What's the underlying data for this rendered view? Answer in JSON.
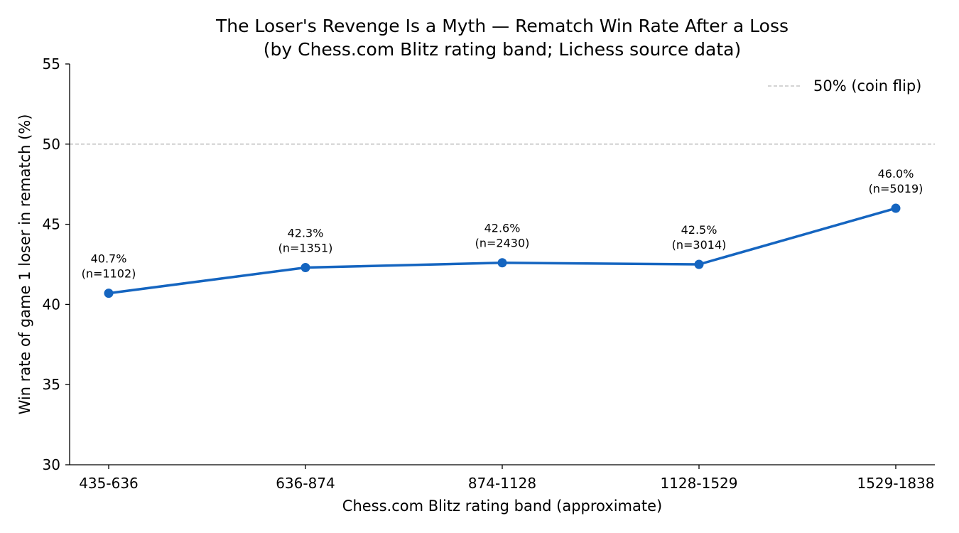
{
  "chart_data": {
    "type": "line",
    "title": "The Loser's Revenge Is a Myth — Rematch Win Rate After a Loss",
    "subtitle": "(by Chess.com Blitz rating band; Lichess source data)",
    "xlabel": "Chess.com Blitz rating band (approximate)",
    "ylabel": "Win rate of game 1 loser in rematch (%)",
    "categories": [
      "435-636",
      "636-874",
      "874-1128",
      "1128-1529",
      "1529-1838"
    ],
    "series": [
      {
        "values": [
          40.7,
          42.3,
          42.6,
          42.5,
          46.0
        ],
        "color": "#1565c0"
      }
    ],
    "sample_sizes": [
      1102,
      1351,
      2430,
      3014,
      5019
    ],
    "data_labels": [
      {
        "pct": "40.7%",
        "n": "(n=1102)"
      },
      {
        "pct": "42.3%",
        "n": "(n=1351)"
      },
      {
        "pct": "42.6%",
        "n": "(n=2430)"
      },
      {
        "pct": "42.5%",
        "n": "(n=3014)"
      },
      {
        "pct": "46.0%",
        "n": "(n=5019)"
      }
    ],
    "ylim": [
      30,
      55
    ],
    "yticks": [
      "30",
      "35",
      "40",
      "45",
      "50",
      "55"
    ],
    "reference_line": {
      "value": 50,
      "label": "50% (coin flip)",
      "color": "#bbbbbb",
      "style": "dashed"
    },
    "legend": {
      "position": "top-right",
      "entries": [
        "50% (coin flip)"
      ]
    },
    "grid": false
  }
}
